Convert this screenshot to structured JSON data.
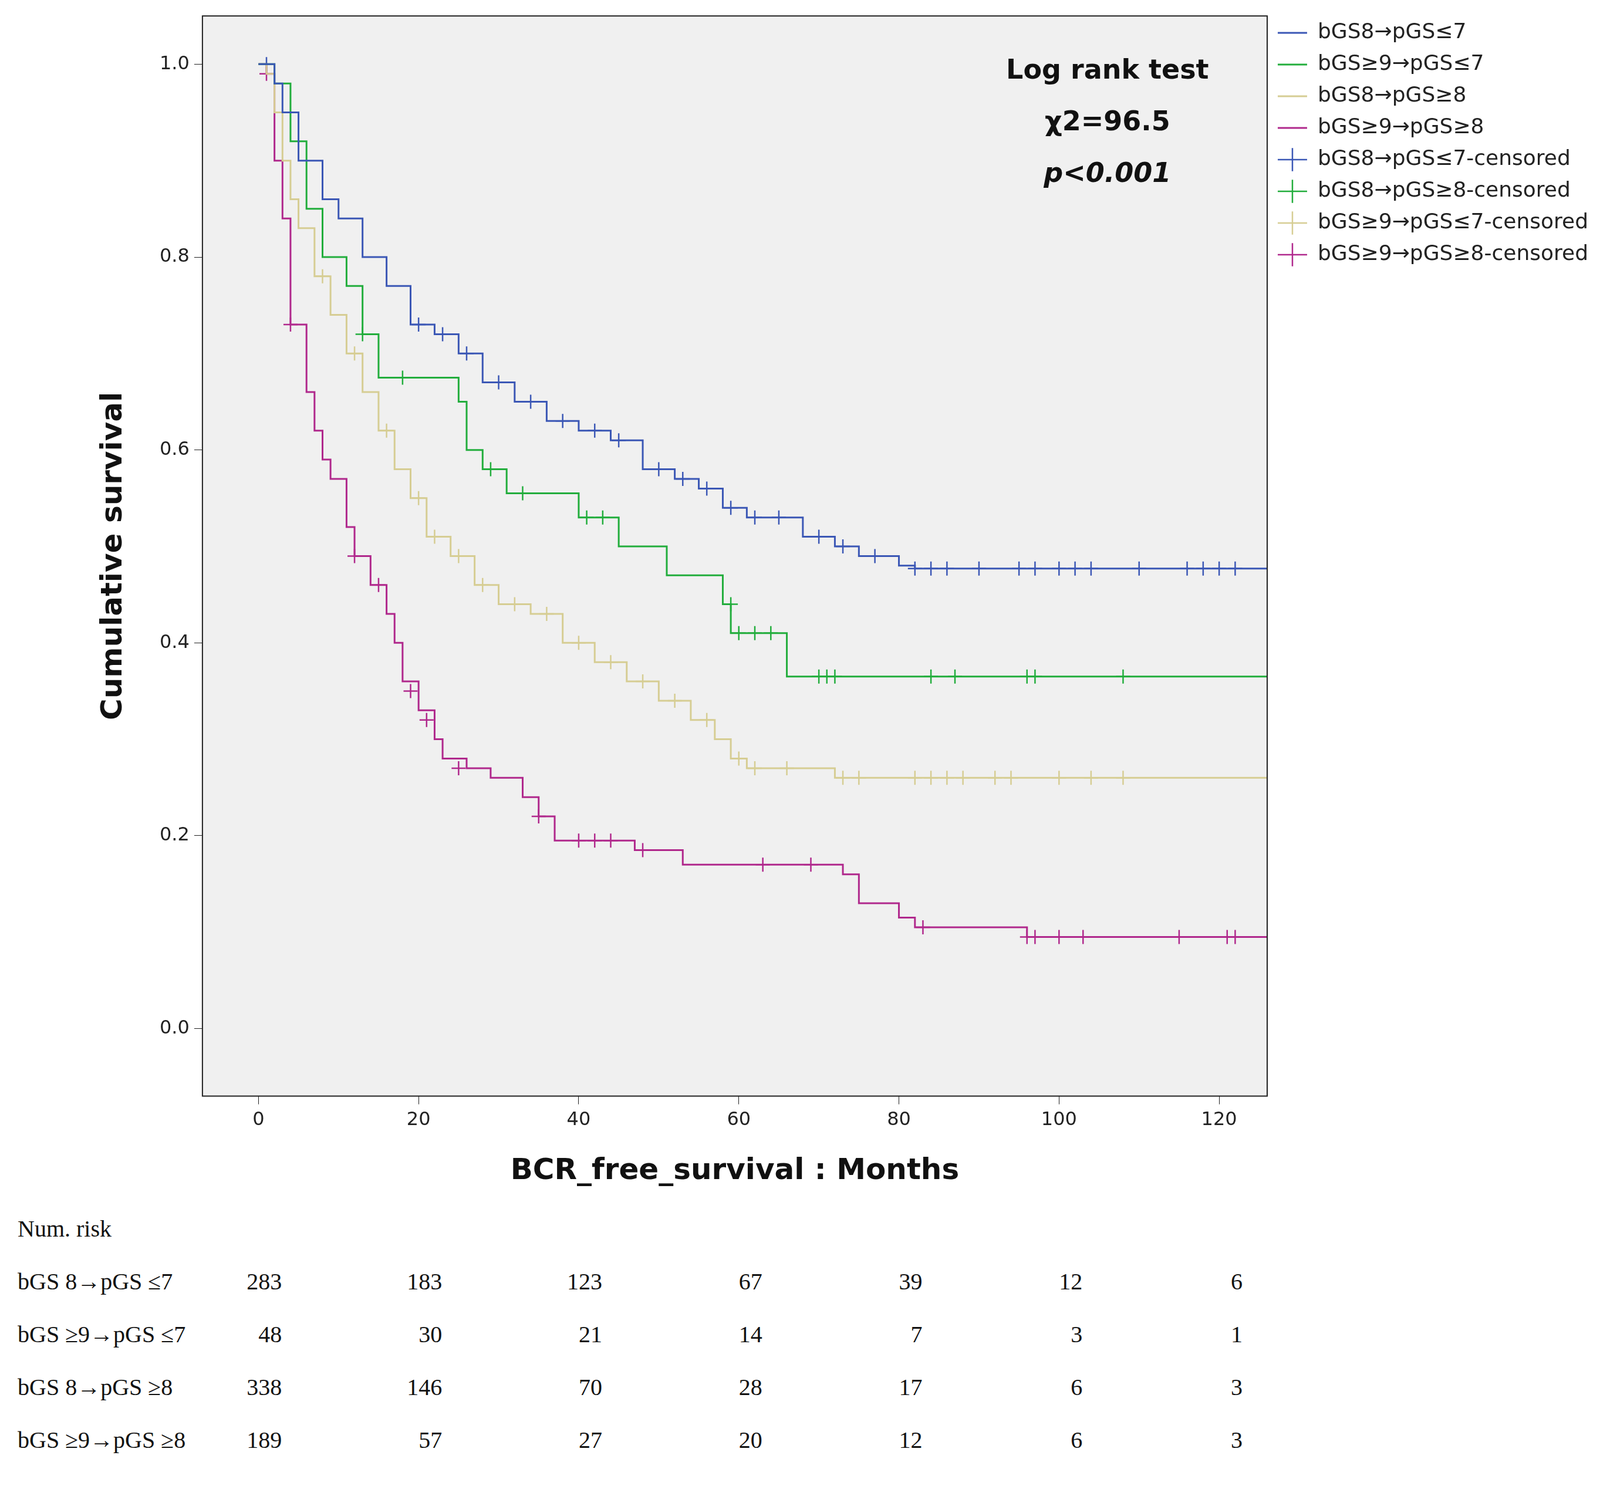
{
  "chart_data": {
    "type": "line",
    "x_label": "BCR_free_survival : Months",
    "y_label": "Cumulative survival",
    "annotations": [
      "Log rank test",
      "χ2=96.5",
      "p<0.001"
    ],
    "xlim": [
      -7,
      126
    ],
    "xticks": [
      0,
      20,
      40,
      60,
      80,
      100,
      120
    ],
    "ylim": [
      -0.07,
      1.05
    ],
    "yticks": [
      {
        "value": 0,
        "label": "0.0"
      },
      0.2,
      0.4,
      0.6,
      0.8,
      {
        "value": 1,
        "label": "1.0"
      }
    ],
    "grid": false,
    "legend": "right",
    "series": [
      {
        "name": "bGS8→pGS≤7",
        "color": "#3b57b5",
        "line_style": "steps",
        "x": [
          0,
          2,
          3,
          5,
          8,
          10,
          13,
          16,
          19,
          22,
          25,
          28,
          32,
          36,
          40,
          44,
          48,
          52,
          55,
          58,
          61,
          68,
          72,
          75,
          80,
          82,
          126
        ],
        "values": [
          1.0,
          0.98,
          0.95,
          0.9,
          0.86,
          0.84,
          0.8,
          0.77,
          0.73,
          0.72,
          0.7,
          0.67,
          0.65,
          0.63,
          0.62,
          0.61,
          0.58,
          0.57,
          0.56,
          0.54,
          0.53,
          0.51,
          0.5,
          0.49,
          0.48,
          0.477,
          0.477
        ],
        "censored": {
          "name": "bGS8→pGS≤7-censored",
          "marker": "cross",
          "x": [
            1,
            20,
            23,
            26,
            30,
            34,
            38,
            42,
            45,
            50,
            53,
            56,
            59,
            62,
            65,
            70,
            73,
            77,
            82,
            84,
            86,
            90,
            95,
            97,
            100,
            102,
            104,
            110,
            116,
            118,
            120,
            122
          ],
          "values": [
            1.0,
            0.73,
            0.72,
            0.7,
            0.67,
            0.65,
            0.63,
            0.62,
            0.61,
            0.58,
            0.57,
            0.56,
            0.54,
            0.53,
            0.53,
            0.51,
            0.5,
            0.49,
            0.477,
            0.477,
            0.477,
            0.477,
            0.477,
            0.477,
            0.477,
            0.477,
            0.477,
            0.477,
            0.477,
            0.477,
            0.477,
            0.477
          ]
        }
      },
      {
        "name": "bGS≥9→pGS≤7",
        "color": "#22ad3c",
        "line_style": "steps",
        "x": [
          0,
          2,
          4,
          6,
          8,
          11,
          13,
          15,
          25,
          26,
          28,
          31,
          40,
          45,
          51,
          58,
          59,
          66,
          126
        ],
        "values": [
          1.0,
          0.98,
          0.92,
          0.85,
          0.8,
          0.77,
          0.72,
          0.675,
          0.65,
          0.6,
          0.58,
          0.555,
          0.53,
          0.5,
          0.47,
          0.44,
          0.41,
          0.365,
          0.365
        ],
        "censored": {
          "name": "bGS8→pGS≥8-censored",
          "marker": "cross",
          "x": [
            13,
            18,
            29,
            33,
            41,
            43,
            59,
            60,
            62,
            64,
            70,
            71,
            72,
            84,
            87,
            96,
            97,
            108
          ],
          "values": [
            0.72,
            0.675,
            0.58,
            0.555,
            0.53,
            0.53,
            0.44,
            0.41,
            0.41,
            0.41,
            0.365,
            0.365,
            0.365,
            0.365,
            0.365,
            0.365,
            0.365,
            0.365
          ]
        }
      },
      {
        "name": "bGS8→pGS≥8",
        "color": "#d6cd93",
        "line_style": "steps",
        "x": [
          0,
          1,
          2,
          3,
          4,
          5,
          7,
          9,
          11,
          13,
          15,
          17,
          19,
          21,
          24,
          27,
          30,
          34,
          38,
          42,
          46,
          50,
          54,
          57,
          59,
          61,
          72,
          126
        ],
        "values": [
          1.0,
          0.99,
          0.95,
          0.9,
          0.86,
          0.83,
          0.78,
          0.74,
          0.7,
          0.66,
          0.62,
          0.58,
          0.55,
          0.51,
          0.49,
          0.46,
          0.44,
          0.43,
          0.4,
          0.38,
          0.36,
          0.34,
          0.32,
          0.3,
          0.28,
          0.27,
          0.26,
          0.26
        ],
        "censored": {
          "name": "bGS≥9→pGS≤7-censored",
          "marker": "cross",
          "x": [
            8,
            12,
            16,
            20,
            22,
            25,
            28,
            32,
            36,
            40,
            44,
            48,
            52,
            56,
            60,
            62,
            66,
            73,
            75,
            82,
            84,
            86,
            88,
            92,
            94,
            100,
            104,
            108
          ],
          "values": [
            0.78,
            0.7,
            0.62,
            0.55,
            0.51,
            0.49,
            0.46,
            0.44,
            0.43,
            0.4,
            0.38,
            0.36,
            0.34,
            0.32,
            0.28,
            0.27,
            0.27,
            0.26,
            0.26,
            0.26,
            0.26,
            0.26,
            0.26,
            0.26,
            0.26,
            0.26,
            0.26,
            0.26
          ]
        }
      },
      {
        "name": "bGS≥9→pGS≥8",
        "color": "#b0288c",
        "line_style": "steps",
        "x": [
          0,
          1,
          2,
          3,
          4,
          6,
          7,
          8,
          9,
          11,
          12,
          14,
          16,
          17,
          18,
          20,
          22,
          23,
          26,
          29,
          33,
          35,
          37,
          47,
          53,
          73,
          75,
          80,
          82,
          96,
          126
        ],
        "values": [
          1.0,
          0.99,
          0.9,
          0.84,
          0.73,
          0.66,
          0.62,
          0.59,
          0.57,
          0.52,
          0.49,
          0.46,
          0.43,
          0.4,
          0.36,
          0.33,
          0.3,
          0.28,
          0.27,
          0.26,
          0.24,
          0.22,
          0.195,
          0.185,
          0.17,
          0.16,
          0.13,
          0.115,
          0.105,
          0.095,
          0.095
        ],
        "censored": {
          "name": "bGS≥9→pGS≥8-censored",
          "marker": "cross",
          "x": [
            1,
            4,
            12,
            15,
            19,
            21,
            25,
            35,
            40,
            42,
            44,
            48,
            63,
            69,
            83,
            96,
            97,
            100,
            103,
            115,
            121,
            122
          ],
          "values": [
            0.99,
            0.73,
            0.49,
            0.46,
            0.35,
            0.32,
            0.27,
            0.22,
            0.195,
            0.195,
            0.195,
            0.185,
            0.17,
            0.17,
            0.105,
            0.095,
            0.095,
            0.095,
            0.095,
            0.095,
            0.095,
            0.095
          ]
        }
      }
    ],
    "risk_table": {
      "title": "Num. risk",
      "rows": [
        {
          "label": "bGS 8→pGS ≤7",
          "values": [
            283,
            183,
            123,
            67,
            39,
            12,
            6
          ]
        },
        {
          "label": "bGS ≥9→pGS ≤7",
          "values": [
            48,
            30,
            21,
            14,
            7,
            3,
            1
          ]
        },
        {
          "label": "bGS 8→pGS ≥8",
          "values": [
            338,
            146,
            70,
            28,
            17,
            6,
            3
          ]
        },
        {
          "label": "bGS ≥9→pGS ≥8",
          "values": [
            189,
            57,
            27,
            20,
            12,
            6,
            3
          ]
        }
      ]
    }
  }
}
